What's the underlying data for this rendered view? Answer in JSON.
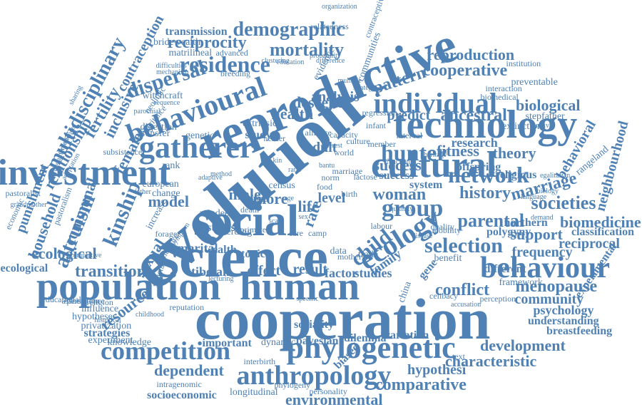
{
  "colors": {
    "word": "#4f81b4",
    "background": "#ffffff"
  },
  "words": [
    "cooperation",
    "evolution",
    "reproductive",
    "science",
    "human",
    "population",
    "social",
    "technology",
    "cultural",
    "investment",
    "gatherer",
    "behaviour",
    "ecology",
    "behavioural",
    "individual",
    "phylogenetic",
    "competition",
    "anthropology",
    "hunter",
    "network",
    "residence",
    "group",
    "dispersal",
    "demographic",
    "mortality",
    "reciprocity",
    "pattern",
    "reproduction",
    "cooperative",
    "conflict",
    "menopause",
    "selection",
    "parental",
    "societies",
    "history",
    "woman",
    "marriage",
    "child",
    "fitness",
    "research",
    "theory",
    "biomedicine",
    "support",
    "kinship",
    "altruism",
    "multidisciplinary",
    "relationship",
    "female",
    "fertility",
    "inclusive",
    "contraception",
    "household",
    "punishment",
    "transition",
    "ecological",
    "sexual",
    "resource",
    "comparative",
    "hypothesi",
    "characteristic",
    "environmental",
    "dependent",
    "development",
    "community",
    "frequency",
    "neighbourhood",
    "behavioral",
    "rangeland",
    "reciprocal",
    "classification",
    "psychology",
    "understanding",
    "breastfeeding",
    "experimental",
    "biological",
    "stepfather",
    "ancestral",
    "predict",
    "health",
    "descent",
    "analysis",
    "adult",
    "success",
    "level",
    "more",
    "life",
    "rate",
    "male",
    "model",
    "effect",
    "result",
    "studies",
    "factor",
    "dilemma",
    "variation",
    "bayesian",
    "sociality",
    "dynamic",
    "important",
    "knowledge",
    "experiment",
    "strategies",
    "influence",
    "hypotheses",
    "educational",
    "persistence",
    "tibetan",
    "marital",
    "status",
    "wealth",
    "topic",
    "data",
    "mother",
    "trade",
    "family",
    "gene",
    "china",
    "biased",
    "interbirth",
    "phylogeny",
    "intragenomic",
    "socioeconomic",
    "longitudinal",
    "personality",
    "transmission",
    "bridewealth",
    "matrilineal",
    "advanced",
    "evidence",
    "relatedness",
    "organization",
    "contraceptive",
    "communities",
    "difficulties",
    "mechanism",
    "breeding",
    "witchcraft",
    "neolithic",
    "parochial",
    "digestion",
    "transfer",
    "genetic",
    "extrinsic",
    "study",
    "herder",
    "capacity",
    "culture",
    "member",
    "interval",
    "world",
    "success",
    "system",
    "offspring",
    "religious",
    "egalitarian",
    "northern",
    "demand",
    "polygyny",
    "quality",
    "mobility",
    "disease",
    "benefit",
    "different",
    "framework",
    "perception",
    "celibacy",
    "accusation",
    "biology",
    "language",
    "extinction",
    "survival",
    "interaction",
    "preventable",
    "institution",
    "biomedical",
    "clustering",
    "education",
    "difference",
    "probability",
    "cumulative",
    "association",
    "privatization",
    "historical",
    "childhood",
    "reputation",
    "religion",
    "ecological",
    "pastoralist",
    "grandmother",
    "economic",
    "pastoralism",
    "communal",
    "change",
    "european",
    "increase",
    "forager",
    "reindeer",
    "death",
    "africa",
    "rank",
    "method",
    "census",
    "ratio",
    "norm",
    "birth",
    "lactose",
    "food",
    "bantu",
    "labour",
    "camp",
    "care",
    "text",
    "sharing",
    "experience",
    "fundamentals",
    "adaptation",
    "inheritance",
    "subsistence",
    "structure",
    "measure",
    "symptom",
    "adaptive",
    "lecturing",
    "father",
    "primate",
    "herding",
    "marriage",
    "strategy",
    "multiple",
    "function",
    "alliance",
    "interest",
    "sequence",
    "heritage",
    "regression",
    "infant",
    "quantity",
    "specific",
    "scale",
    "kin",
    "age",
    "sex",
    "gift"
  ]
}
